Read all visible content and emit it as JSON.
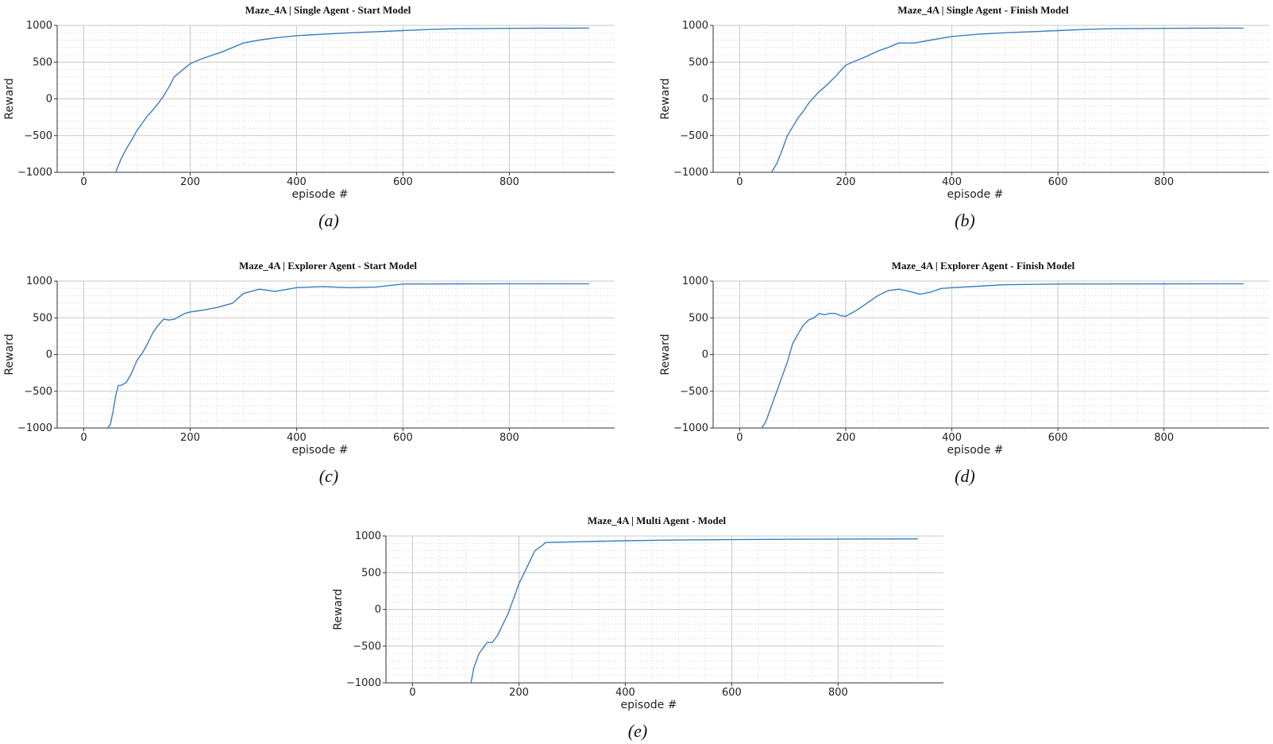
{
  "figure": {
    "captions": [
      "(a)",
      "(b)",
      "(c)",
      "(d)",
      "(e)"
    ]
  },
  "style": {
    "line_color": "#3a7ebf",
    "major_grid_color": "#c8c8c8",
    "minor_grid_color": "#e6e6e6",
    "axis_color": "#333333"
  },
  "chart_data": [
    {
      "type": "line",
      "title": "Maze_4A | Single Agent - Start Model",
      "xlabel": "episode #",
      "ylabel": "Reward",
      "xlim": [
        -50,
        998
      ],
      "ylim": [
        -1000,
        1000
      ],
      "xticks": [
        0,
        200,
        400,
        600,
        800
      ],
      "yticks": [
        -1000,
        -500,
        0,
        500,
        1000
      ],
      "ytick_labels": [
        "−1000",
        "−500",
        "0",
        "500",
        "1000"
      ],
      "grid": true,
      "series": [
        {
          "x": [
            60,
            70,
            80,
            90,
            100,
            110,
            120,
            130,
            140,
            150,
            160,
            170,
            180,
            190,
            200,
            220,
            240,
            260,
            280,
            300,
            330,
            360,
            400,
            450,
            500,
            550,
            600,
            650,
            700,
            750,
            800,
            850,
            950
          ],
          "y": [
            -1000,
            -820,
            -680,
            -560,
            -430,
            -330,
            -230,
            -150,
            -60,
            40,
            160,
            300,
            360,
            420,
            480,
            540,
            590,
            640,
            700,
            760,
            800,
            830,
            860,
            880,
            900,
            915,
            930,
            945,
            955,
            958,
            960,
            962,
            963
          ]
        }
      ]
    },
    {
      "type": "line",
      "title": "Maze_4A | Single Agent - Finish Model",
      "xlabel": "episode #",
      "ylabel": "Reward",
      "xlim": [
        -50,
        998
      ],
      "ylim": [
        -1000,
        1000
      ],
      "xticks": [
        0,
        200,
        400,
        600,
        800
      ],
      "yticks": [
        -1000,
        -500,
        0,
        500,
        1000
      ],
      "ytick_labels": [
        "−1000",
        "−500",
        "0",
        "500",
        "1000"
      ],
      "grid": true,
      "series": [
        {
          "x": [
            60,
            70,
            80,
            90,
            100,
            110,
            120,
            130,
            140,
            150,
            160,
            170,
            180,
            190,
            200,
            220,
            240,
            260,
            280,
            300,
            330,
            360,
            400,
            450,
            500,
            550,
            600,
            650,
            700,
            750,
            800,
            850,
            950
          ],
          "y": [
            -1000,
            -880,
            -700,
            -500,
            -380,
            -260,
            -170,
            -60,
            20,
            100,
            160,
            230,
            300,
            380,
            460,
            520,
            580,
            650,
            700,
            760,
            760,
            800,
            850,
            880,
            900,
            915,
            930,
            945,
            955,
            958,
            960,
            962,
            963
          ]
        }
      ]
    },
    {
      "type": "line",
      "title": "Maze_4A | Explorer Agent - Start Model",
      "xlabel": "episode #",
      "ylabel": "Reward",
      "xlim": [
        -50,
        998
      ],
      "ylim": [
        -1000,
        1000
      ],
      "xticks": [
        0,
        200,
        400,
        600,
        800
      ],
      "yticks": [
        -1000,
        -500,
        0,
        500,
        1000
      ],
      "ytick_labels": [
        "−1000",
        "−500",
        "0",
        "500",
        "1000"
      ],
      "grid": true,
      "series": [
        {
          "x": [
            45,
            50,
            55,
            60,
            65,
            70,
            80,
            90,
            100,
            110,
            120,
            130,
            140,
            150,
            160,
            170,
            180,
            190,
            200,
            220,
            250,
            280,
            300,
            330,
            360,
            400,
            450,
            500,
            550,
            600,
            700,
            800,
            950
          ],
          "y": [
            -1000,
            -950,
            -780,
            -560,
            -420,
            -420,
            -380,
            -250,
            -80,
            20,
            150,
            300,
            400,
            480,
            470,
            480,
            520,
            560,
            580,
            600,
            640,
            700,
            830,
            890,
            860,
            910,
            925,
            910,
            920,
            960,
            962,
            963,
            963
          ]
        }
      ]
    },
    {
      "type": "line",
      "title": "Maze_4A | Explorer Agent - Finish Model",
      "xlabel": "episode #",
      "ylabel": "Reward",
      "xlim": [
        -50,
        998
      ],
      "ylim": [
        -1000,
        1000
      ],
      "xticks": [
        0,
        200,
        400,
        600,
        800
      ],
      "yticks": [
        -1000,
        -500,
        0,
        500,
        1000
      ],
      "ytick_labels": [
        "−1000",
        "−500",
        "0",
        "500",
        "1000"
      ],
      "grid": true,
      "series": [
        {
          "x": [
            42,
            50,
            60,
            70,
            80,
            90,
            100,
            110,
            120,
            130,
            140,
            150,
            160,
            170,
            180,
            190,
            200,
            220,
            240,
            260,
            280,
            300,
            320,
            340,
            360,
            380,
            400,
            450,
            500,
            550,
            600,
            800,
            950
          ],
          "y": [
            -1000,
            -900,
            -700,
            -500,
            -300,
            -100,
            150,
            280,
            400,
            470,
            500,
            560,
            540,
            560,
            560,
            530,
            520,
            600,
            700,
            800,
            870,
            890,
            860,
            820,
            850,
            900,
            910,
            930,
            950,
            955,
            960,
            962,
            963
          ]
        }
      ]
    },
    {
      "type": "line",
      "title": "Maze_4A | Multi Agent - Model",
      "xlabel": "episode #",
      "ylabel": "Reward",
      "xlim": [
        -50,
        998
      ],
      "ylim": [
        -1000,
        1000
      ],
      "xticks": [
        0,
        200,
        400,
        600,
        800
      ],
      "yticks": [
        -1000,
        -500,
        0,
        500,
        1000
      ],
      "ytick_labels": [
        "−1000",
        "−500",
        "0",
        "500",
        "1000"
      ],
      "grid": true,
      "series": [
        {
          "x": [
            110,
            115,
            120,
            125,
            130,
            140,
            150,
            160,
            170,
            180,
            190,
            200,
            210,
            220,
            230,
            240,
            250,
            300,
            400,
            500,
            600,
            700,
            800,
            950
          ],
          "y": [
            -1000,
            -800,
            -700,
            -600,
            -550,
            -450,
            -450,
            -350,
            -200,
            -50,
            150,
            350,
            500,
            650,
            800,
            850,
            910,
            920,
            935,
            945,
            950,
            955,
            958,
            960
          ]
        }
      ]
    }
  ]
}
